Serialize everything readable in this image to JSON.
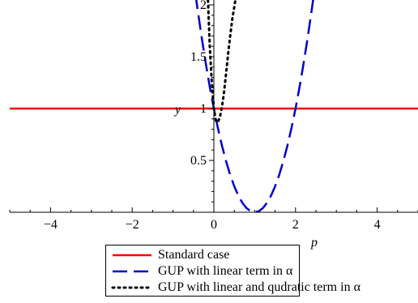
{
  "chart_data": {
    "type": "line",
    "title": "",
    "xlabel": "p",
    "ylabel": "y",
    "xlim": [
      -5,
      5
    ],
    "ylim": [
      0,
      2
    ],
    "xticks": [
      -4,
      -2,
      0,
      2,
      4
    ],
    "xtick_labels": [
      "−4",
      "−2",
      "0",
      "2",
      "4"
    ],
    "yticks": [
      0.5,
      1,
      1.5,
      2
    ],
    "ytick_labels": [
      "0.5",
      "1",
      "1.5",
      "2"
    ],
    "grid": false,
    "legend_position": "bottom",
    "series": [
      {
        "name": "Standard case",
        "color": "#ff0000",
        "style": "solid",
        "x": [
          -5,
          5
        ],
        "y": [
          1,
          1
        ]
      },
      {
        "name": "GUP with linear term in α",
        "color": "#0000cc",
        "style": "dashed",
        "x": [
          -0.45,
          -0.4,
          -0.3,
          -0.2,
          -0.1,
          0,
          0.1,
          0.2,
          0.3,
          0.4,
          0.5,
          0.6,
          0.7,
          0.8,
          0.9,
          1.0,
          1.1,
          1.2,
          1.3,
          1.4,
          1.5,
          1.6,
          1.7,
          1.8,
          1.9,
          2.0,
          2.1,
          2.2,
          2.3,
          2.4,
          2.45
        ],
        "y": [
          2.1,
          1.96,
          1.69,
          1.44,
          1.21,
          1.0,
          0.81,
          0.64,
          0.49,
          0.36,
          0.25,
          0.16,
          0.09,
          0.04,
          0.01,
          0.0,
          0.01,
          0.04,
          0.09,
          0.16,
          0.25,
          0.36,
          0.49,
          0.64,
          0.81,
          1.0,
          1.21,
          1.44,
          1.69,
          1.96,
          2.1
        ]
      },
      {
        "name": "GUP with linear and qudratic term in α",
        "color": "#000000",
        "style": "dotted",
        "x": [
          -0.15,
          -0.1,
          -0.05,
          0.0,
          0.05,
          0.1,
          0.15,
          0.2,
          0.25,
          0.3,
          0.35,
          0.4,
          0.45,
          0.5,
          0.55
        ],
        "y": [
          2.1,
          1.6,
          1.25,
          1.0,
          0.88,
          0.87,
          0.92,
          1.02,
          1.16,
          1.34,
          1.53,
          1.7,
          1.86,
          1.98,
          2.1
        ]
      }
    ]
  }
}
